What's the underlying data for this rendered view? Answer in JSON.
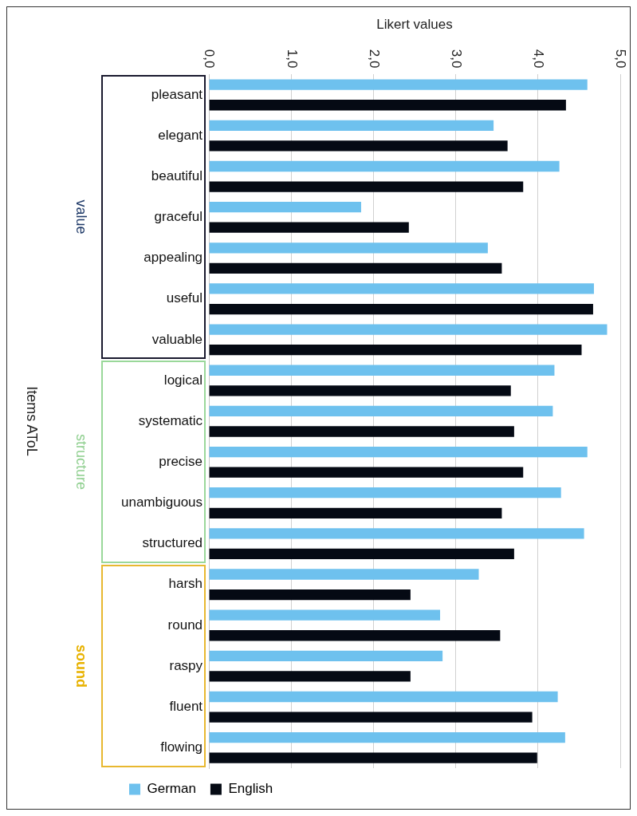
{
  "chart_data": {
    "type": "bar",
    "orientation": "horizontal",
    "xlabel": "Likert values",
    "categories": [
      "pleasant",
      "elegant",
      "beautiful",
      "graceful",
      "appealing",
      "useful",
      "valuable",
      "logical",
      "systematic",
      "precise",
      "unambiguous",
      "structured",
      "harsh",
      "round",
      "raspy",
      "fluent",
      "flowing"
    ],
    "series": [
      {
        "name": "German",
        "color": "#6ec1ee",
        "values": [
          4.6,
          3.46,
          4.26,
          1.85,
          3.39,
          4.68,
          4.84,
          4.2,
          4.18,
          4.6,
          4.28,
          4.56,
          3.28,
          2.81,
          2.84,
          4.24,
          4.33
        ]
      },
      {
        "name": "English",
        "color": "#050a14",
        "values": [
          4.34,
          3.63,
          3.82,
          2.43,
          3.56,
          4.67,
          4.53,
          3.67,
          3.71,
          3.82,
          3.56,
          3.71,
          2.45,
          3.54,
          2.45,
          3.93,
          3.99
        ]
      }
    ],
    "xlim": [
      0,
      5
    ],
    "xticks": [
      {
        "value": 0,
        "label": "0,0"
      },
      {
        "value": 1,
        "label": "1,0"
      },
      {
        "value": 2,
        "label": "2,0"
      },
      {
        "value": 3,
        "label": "3,0"
      },
      {
        "value": 4,
        "label": "4,0"
      },
      {
        "value": 5,
        "label": "5,0"
      }
    ],
    "grid": "x",
    "legend": "bottom",
    "annotations": [
      "value",
      "structure",
      "sound",
      "Items AToL"
    ]
  }
}
